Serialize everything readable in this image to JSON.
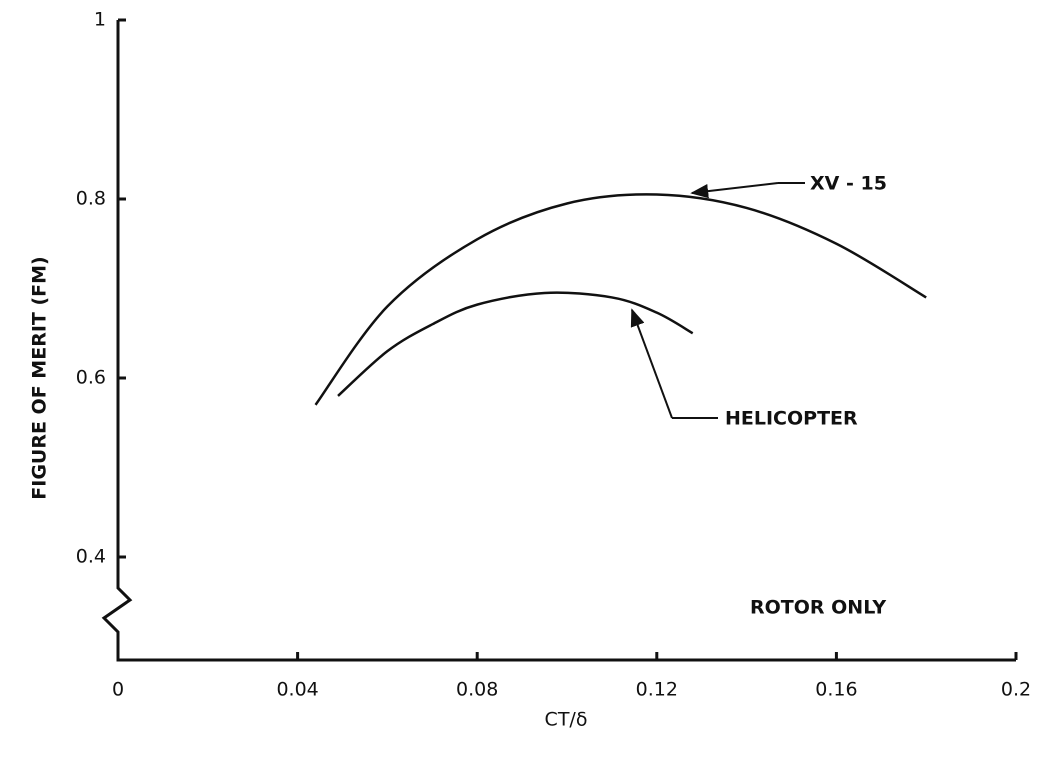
{
  "chart_data": {
    "type": "line",
    "xlabel": "CT/δ",
    "ylabel": "FIGURE OF MERIT (FM)",
    "xlim": [
      0,
      0.2
    ],
    "xticks": [
      0,
      0.04,
      0.08,
      0.12,
      0.16,
      0.2
    ],
    "ylim": [
      0.4,
      1.0
    ],
    "yticks": [
      0.4,
      0.6,
      0.8,
      1.0
    ],
    "series": [
      {
        "name": "XV - 15",
        "color": "#111111",
        "x": [
          0.044,
          0.06,
          0.08,
          0.1,
          0.12,
          0.14,
          0.16,
          0.18
        ],
        "values": [
          0.57,
          0.68,
          0.755,
          0.795,
          0.805,
          0.79,
          0.75,
          0.69
        ]
      },
      {
        "name": "HELICOPTER",
        "color": "#111111",
        "x": [
          0.049,
          0.06,
          0.07,
          0.08,
          0.095,
          0.11,
          0.12,
          0.128
        ],
        "values": [
          0.58,
          0.63,
          0.66,
          0.682,
          0.695,
          0.69,
          0.673,
          0.65
        ]
      }
    ],
    "annotations": [
      "ROTOR ONLY"
    ]
  }
}
